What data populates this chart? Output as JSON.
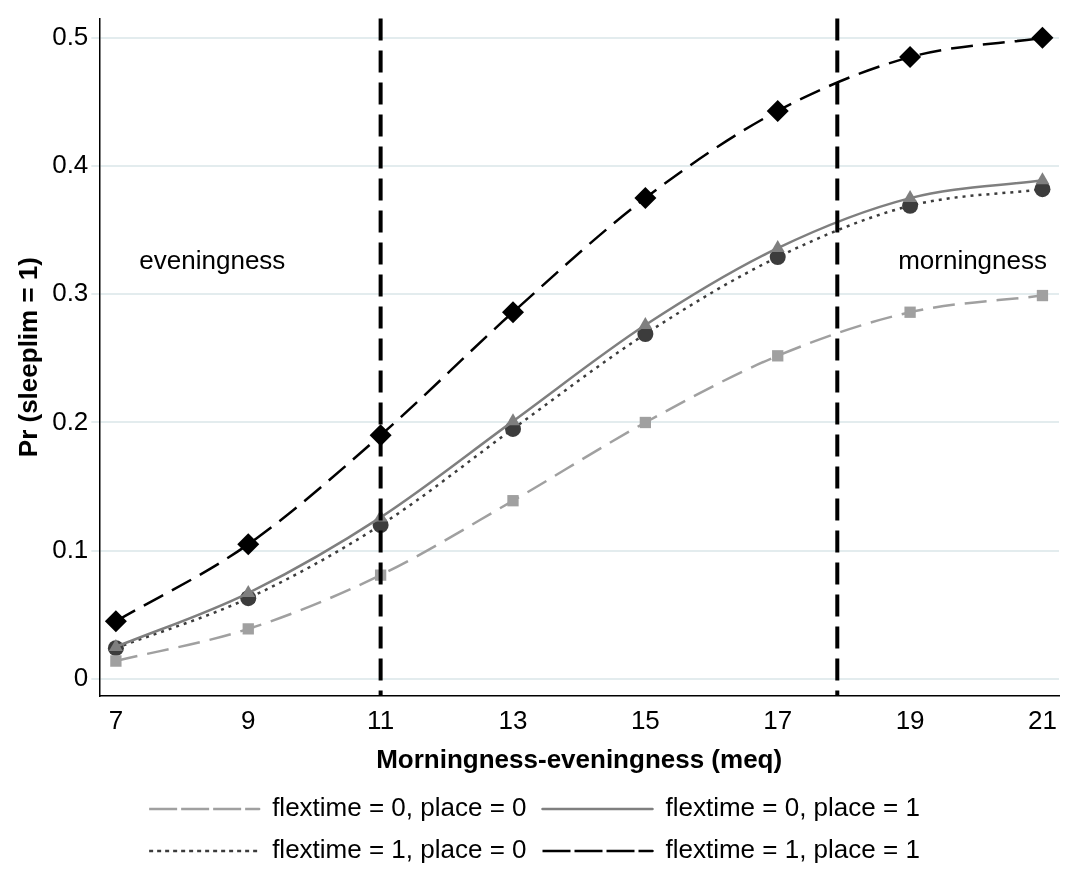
{
  "chart_data": {
    "type": "line",
    "xlabel": "Morningness-eveningness (meq)",
    "ylabel": "Pr (sleeplim = 1)",
    "x": [
      7,
      9,
      11,
      13,
      15,
      17,
      19,
      21
    ],
    "series": [
      {
        "name": "flextime = 0, place = 0",
        "color": "#a0a0a0",
        "marker": "square",
        "line_style": "dashed",
        "values": [
          0.014,
          0.039,
          0.081,
          0.139,
          0.2,
          0.252,
          0.286,
          0.299
        ]
      },
      {
        "name": "flextime = 0, place = 1",
        "color": "#7f7f7f",
        "marker": "triangle",
        "line_style": "solid",
        "values": [
          0.025,
          0.067,
          0.126,
          0.201,
          0.276,
          0.336,
          0.375,
          0.389
        ]
      },
      {
        "name": "flextime = 1, place = 0",
        "color": "#3c3c3c",
        "marker": "circle",
        "line_style": "dotted",
        "values": [
          0.024,
          0.063,
          0.12,
          0.195,
          0.269,
          0.329,
          0.369,
          0.382
        ]
      },
      {
        "name": "flextime = 1, place = 1",
        "color": "#000000",
        "marker": "diamond",
        "line_style": "dashed",
        "values": [
          0.045,
          0.105,
          0.19,
          0.286,
          0.375,
          0.443,
          0.485,
          0.5
        ]
      }
    ],
    "xlim": [
      6.75,
      21.25
    ],
    "xticks": [
      7,
      9,
      11,
      13,
      15,
      17,
      19,
      21
    ],
    "ylim": [
      -0.013,
      0.515
    ],
    "yticks": [
      0,
      0.1,
      0.2,
      0.3,
      0.4,
      0.5
    ],
    "ref_lines": [
      {
        "axis": "x",
        "value": 11,
        "color": "#000000",
        "line_style": "dashed"
      },
      {
        "axis": "x",
        "value": 17.9,
        "color": "#000000",
        "line_style": "dashed"
      }
    ],
    "annotations": [
      "eveningness",
      "morningness"
    ],
    "grid": "y",
    "legend": "bottom"
  }
}
